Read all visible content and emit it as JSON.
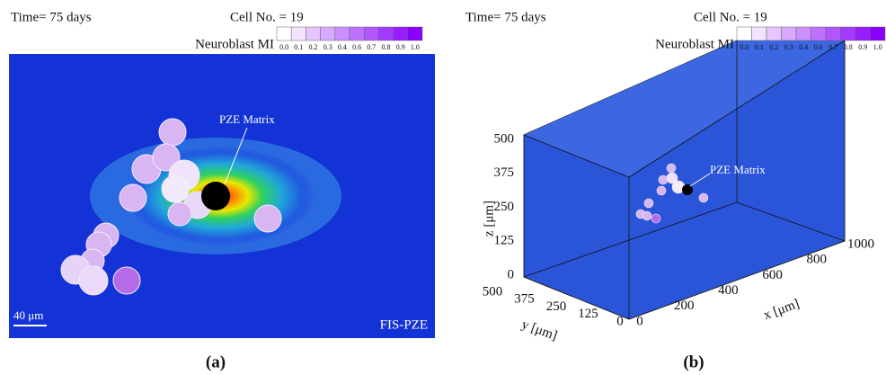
{
  "panel_a": {
    "time": "Time= 75 days",
    "cell_count": "Cell No. = 19",
    "colorbar_title": "Neuroblast MI",
    "colorbar_ticks": [
      "0.0",
      "0.1",
      "0.2",
      "0.3",
      "0.4",
      "0.6",
      "0.7",
      "0.8",
      "0.9",
      "1.0"
    ],
    "annotation": "PZE Matrix",
    "scale_bar": "40 μm",
    "model": "FIS-PZE",
    "caption": "(a)"
  },
  "panel_b": {
    "time": "Time= 75 days",
    "cell_count": "Cell No. = 19",
    "colorbar_title": "Neuroblast MI",
    "colorbar_ticks": [
      "0.0",
      "0.1",
      "0.2",
      "0.3",
      "0.4",
      "0.6",
      "0.7",
      "0.8",
      "0.9",
      "1.0"
    ],
    "annotation": "PZE Matrix",
    "z_label": "z [μm]",
    "y_label": "y [μm]",
    "x_label": "x [μm]",
    "z_ticks": [
      "500",
      "375",
      "250",
      "125",
      "0"
    ],
    "y_ticks": [
      "500",
      "375",
      "250",
      "125",
      "0"
    ],
    "x_ticks": [
      "0",
      "200",
      "400",
      "600",
      "800",
      "1000"
    ],
    "caption": "(b)"
  }
}
